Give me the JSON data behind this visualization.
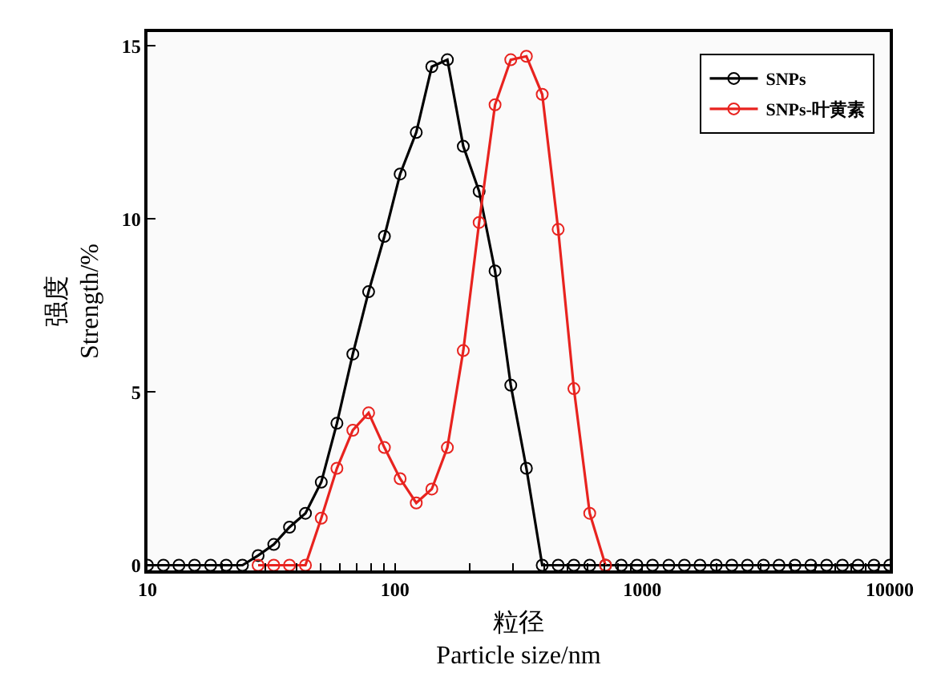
{
  "chart_data": {
    "type": "line",
    "xlabel": "粒径\nParticle size/nm",
    "ylabel": "强度\nStrength/%",
    "x": [
      10,
      11.6,
      13.4,
      15.5,
      18.0,
      20.8,
      24.2,
      28.0,
      32.4,
      37.5,
      43.5,
      50.4,
      58.3,
      67.6,
      78.3,
      90.7,
      105,
      122,
      141,
      163,
      189,
      219,
      254,
      294,
      340,
      394,
      457,
      529,
      613,
      710,
      822,
      952,
      1100,
      1280,
      1480,
      1710,
      1990,
      2300,
      2660,
      3090,
      3570,
      4140,
      4800,
      5560,
      6440,
      7450,
      8640,
      10000
    ],
    "series": [
      {
        "name": "SNPs",
        "color": "#000000",
        "values": [
          0,
          0,
          0,
          0,
          0,
          0,
          0,
          0.28,
          0.6,
          1.1,
          1.5,
          2.4,
          4.1,
          6.1,
          7.9,
          9.5,
          11.3,
          12.5,
          14.4,
          14.6,
          12.1,
          10.8,
          8.5,
          5.2,
          2.8,
          0,
          0,
          0,
          0,
          0,
          0,
          0,
          0,
          0,
          0,
          0,
          0,
          0,
          0,
          0,
          0,
          0,
          0,
          0,
          0,
          0,
          0,
          0
        ]
      },
      {
        "name": "SNPs-叶黄素",
        "color": "#e8231f",
        "values": [
          null,
          null,
          null,
          null,
          null,
          null,
          null,
          0,
          0,
          0,
          0,
          1.36,
          2.8,
          3.9,
          4.4,
          3.4,
          2.5,
          1.8,
          2.2,
          3.4,
          6.2,
          9.9,
          13.3,
          14.6,
          14.7,
          13.6,
          9.7,
          5.1,
          1.5,
          0,
          null,
          null,
          null,
          null,
          null,
          null,
          null,
          null,
          null,
          null,
          null,
          null,
          null,
          null,
          null,
          null,
          null,
          null
        ]
      }
    ],
    "log": "x",
    "xlim": [
      10,
      10000
    ],
    "xticks": [
      10,
      {
        "value": 20,
        "label": null
      },
      {
        "value": 30,
        "label": null
      },
      {
        "value": 40,
        "label": null
      },
      {
        "value": 50,
        "label": null
      },
      {
        "value": 60,
        "label": null
      },
      {
        "value": 70,
        "label": null
      },
      {
        "value": 80,
        "label": null
      },
      {
        "value": 90,
        "label": null
      },
      100,
      {
        "value": 200,
        "label": null
      },
      {
        "value": 300,
        "label": null
      },
      {
        "value": 400,
        "label": null
      },
      {
        "value": 500,
        "label": null
      },
      {
        "value": 600,
        "label": null
      },
      {
        "value": 700,
        "label": null
      },
      {
        "value": 800,
        "label": null
      },
      {
        "value": 900,
        "label": null
      },
      1000,
      {
        "value": 2000,
        "label": null
      },
      {
        "value": 3000,
        "label": null
      },
      {
        "value": 4000,
        "label": null
      },
      {
        "value": 5000,
        "label": null
      },
      {
        "value": 6000,
        "label": null
      },
      {
        "value": 7000,
        "label": null
      },
      {
        "value": 8000,
        "label": null
      },
      {
        "value": 9000,
        "label": null
      },
      10000
    ],
    "ylim": [
      -0.15,
      15.4
    ],
    "yticks": [
      0,
      5,
      10,
      15
    ],
    "grid": false,
    "legend": "top right",
    "marker": "circle",
    "line_style": "solid"
  }
}
